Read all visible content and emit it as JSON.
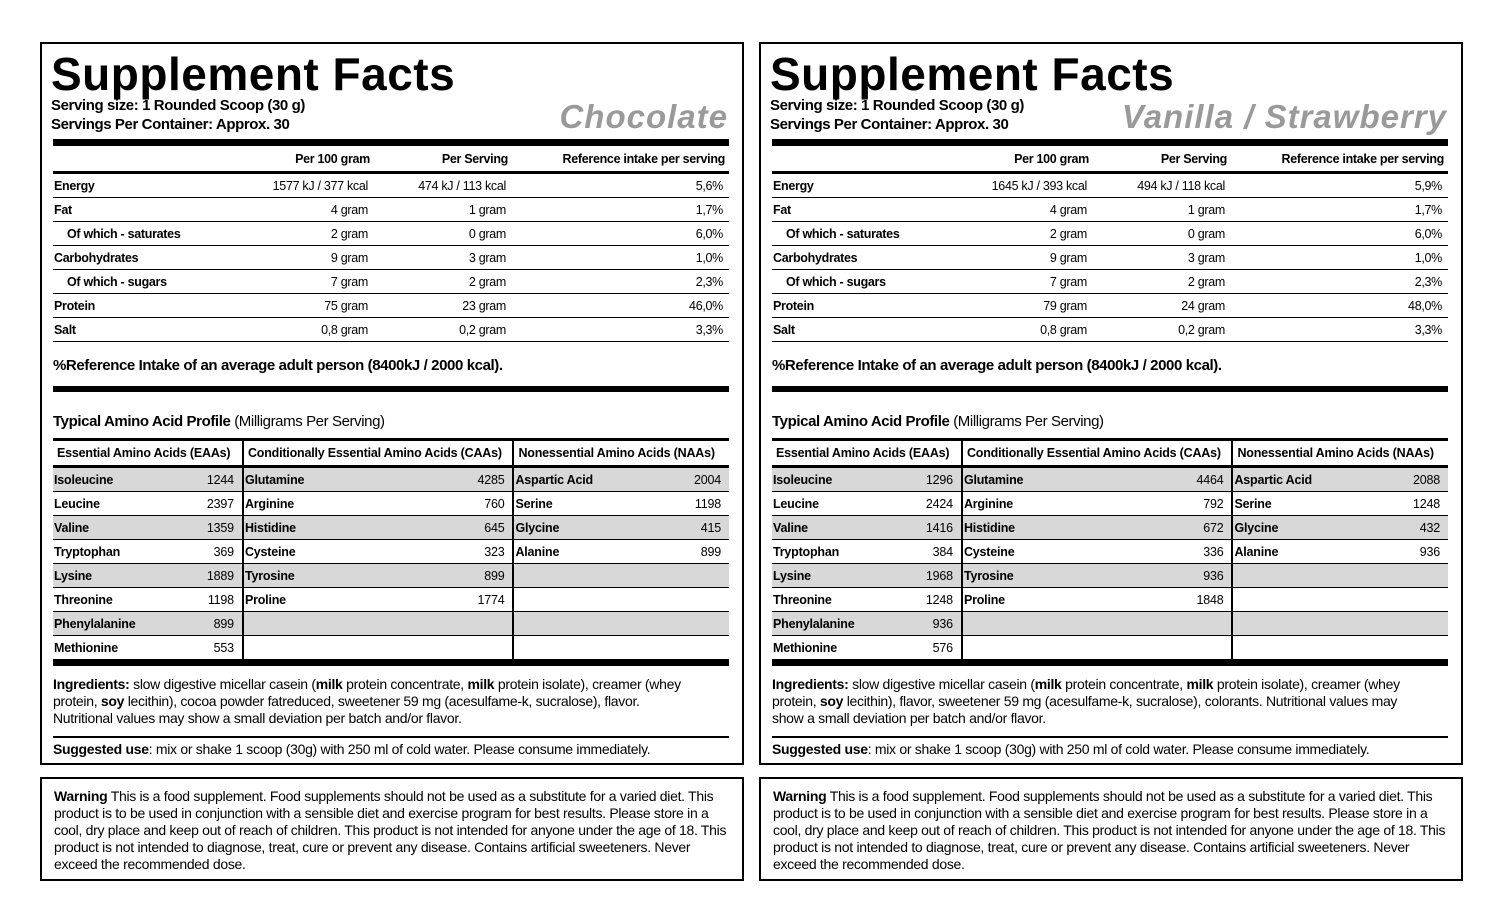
{
  "panels": [
    {
      "title": "Supplement Facts",
      "serving_size": "Serving size: 1 Rounded Scoop (30 g)",
      "servings_per_container": "Servings Per Container: Approx. 30",
      "flavor": "Chocolate",
      "nutrition": {
        "headers": [
          "Per 100 gram",
          "Per Serving",
          "Reference intake per serving"
        ],
        "rows": [
          {
            "label": "Energy",
            "values": [
              "1577 kJ / 377 kcal",
              "474 kJ / 113 kcal",
              "5,6%"
            ]
          },
          {
            "label": "Fat",
            "values": [
              "4 gram",
              "1 gram",
              "1,7%"
            ]
          },
          {
            "label": "Of which - saturates",
            "sub": true,
            "values": [
              "2 gram",
              "0 gram",
              "6,0%"
            ]
          },
          {
            "label": "Carbohydrates",
            "values": [
              "9 gram",
              "3 gram",
              "1,0%"
            ]
          },
          {
            "label": "Of which - sugars",
            "sub": true,
            "values": [
              "7 gram",
              "2 gram",
              "2,3%"
            ]
          },
          {
            "label": "Protein",
            "values": [
              "75 gram",
              "23 gram",
              "46,0%"
            ]
          },
          {
            "label": "Salt",
            "values": [
              "0,8 gram",
              "0,2 gram",
              "3,3%"
            ]
          }
        ]
      },
      "reference_note": "%Reference Intake of an average adult person (8400kJ / 2000 kcal).",
      "amino": {
        "title": "Typical Amino Acid Profile",
        "subtitle": "(Milligrams Per Serving)",
        "columns": [
          {
            "header": "Essential Amino Acids (EAAs)",
            "rows": [
              [
                "Isoleucine",
                1244
              ],
              [
                "Leucine",
                2397
              ],
              [
                "Valine",
                1359
              ],
              [
                "Tryptophan",
                369
              ],
              [
                "Lysine",
                1889
              ],
              [
                "Threonine",
                1198
              ],
              [
                "Phenylalanine",
                899
              ],
              [
                "Methionine",
                553
              ]
            ]
          },
          {
            "header": "Conditionally Essential Amino Acids (CAAs)",
            "rows": [
              [
                "Glutamine",
                4285
              ],
              [
                "Arginine",
                760
              ],
              [
                "Histidine",
                645
              ],
              [
                "Cysteine",
                323
              ],
              [
                "Tyrosine",
                899
              ],
              [
                "Proline",
                1774
              ]
            ]
          },
          {
            "header": "Nonessential Amino Acids (NAAs)",
            "rows": [
              [
                "Aspartic Acid",
                2004
              ],
              [
                "Serine",
                1198
              ],
              [
                "Glycine",
                415
              ],
              [
                "Alanine",
                899
              ]
            ]
          }
        ]
      },
      "ingredients": {
        "label": "Ingredients:",
        "segments": [
          {
            "text": " slow digestive micellar casein ("
          },
          {
            "text": "milk",
            "bold": true
          },
          {
            "text": " protein concentrate, "
          },
          {
            "text": "milk",
            "bold": true
          },
          {
            "text": " protein isolate), creamer (whey protein, "
          },
          {
            "text": "soy",
            "bold": true
          },
          {
            "text": " lecithin), cocoa powder fatreduced, sweetener 59 mg (acesulfame-k, sucralose), flavor. Nutritional values may show a small deviation per batch and/or flavor."
          }
        ]
      },
      "suggested_use": {
        "label": "Suggested use",
        "text": ": mix or shake 1 scoop (30g) with 250 ml of cold water. Please consume immediately."
      },
      "warning": {
        "label": "Warning",
        "text": " This is a food supplement. Food supplements should not be used as a substitute for a varied diet. This product is to be used in conjunction with a sensible diet and exercise program for best results. Please store in a cool, dry place and keep out of reach of children. This product is not intended for anyone under the age of 18. This product is not intended to diagnose, treat, cure or prevent any disease. Contains artificial sweeteners. Never exceed the recommended dose."
      }
    },
    {
      "title": "Supplement Facts",
      "serving_size": "Serving size: 1 Rounded Scoop (30 g)",
      "servings_per_container": "Servings Per Container: Approx. 30",
      "flavor": "Vanilla / Strawberry",
      "nutrition": {
        "headers": [
          "Per 100 gram",
          "Per Serving",
          "Reference intake per serving"
        ],
        "rows": [
          {
            "label": "Energy",
            "values": [
              "1645 kJ / 393 kcal",
              "494 kJ / 118 kcal",
              "5,9%"
            ]
          },
          {
            "label": "Fat",
            "values": [
              "4 gram",
              "1 gram",
              "1,7%"
            ]
          },
          {
            "label": "Of which - saturates",
            "sub": true,
            "values": [
              "2 gram",
              "0 gram",
              "6,0%"
            ]
          },
          {
            "label": "Carbohydrates",
            "values": [
              "9 gram",
              "3 gram",
              "1,0%"
            ]
          },
          {
            "label": "Of which - sugars",
            "sub": true,
            "values": [
              "7 gram",
              "2 gram",
              "2,3%"
            ]
          },
          {
            "label": "Protein",
            "values": [
              "79 gram",
              "24 gram",
              "48,0%"
            ]
          },
          {
            "label": "Salt",
            "values": [
              "0,8 gram",
              "0,2 gram",
              "3,3%"
            ]
          }
        ]
      },
      "reference_note": "%Reference Intake of an average adult person (8400kJ / 2000 kcal).",
      "amino": {
        "title": "Typical Amino Acid Profile",
        "subtitle": "(Milligrams Per Serving)",
        "columns": [
          {
            "header": "Essential Amino Acids (EAAs)",
            "rows": [
              [
                "Isoleucine",
                1296
              ],
              [
                "Leucine",
                2424
              ],
              [
                "Valine",
                1416
              ],
              [
                "Tryptophan",
                384
              ],
              [
                "Lysine",
                1968
              ],
              [
                "Threonine",
                1248
              ],
              [
                "Phenylalanine",
                936
              ],
              [
                "Methionine",
                576
              ]
            ]
          },
          {
            "header": "Conditionally Essential Amino Acids (CAAs)",
            "rows": [
              [
                "Glutamine",
                4464
              ],
              [
                "Arginine",
                792
              ],
              [
                "Histidine",
                672
              ],
              [
                "Cysteine",
                336
              ],
              [
                "Tyrosine",
                936
              ],
              [
                "Proline",
                1848
              ]
            ]
          },
          {
            "header": "Nonessential Amino Acids (NAAs)",
            "rows": [
              [
                "Aspartic Acid",
                2088
              ],
              [
                "Serine",
                1248
              ],
              [
                "Glycine",
                432
              ],
              [
                "Alanine",
                936
              ]
            ]
          }
        ]
      },
      "ingredients": {
        "label": "Ingredients:",
        "segments": [
          {
            "text": " slow digestive micellar casein ("
          },
          {
            "text": "milk",
            "bold": true
          },
          {
            "text": " protein concentrate, "
          },
          {
            "text": "milk",
            "bold": true
          },
          {
            "text": " protein isolate), creamer (whey protein, "
          },
          {
            "text": "soy",
            "bold": true
          },
          {
            "text": " lecithin), flavor, sweetener 59 mg (acesulfame-k, sucralose), colorants. Nutritional values may show a small deviation per batch and/or flavor."
          }
        ]
      },
      "suggested_use": {
        "label": "Suggested use",
        "text": ": mix or shake 1 scoop (30g) with 250 ml of cold water. Please consume immediately."
      },
      "warning": {
        "label": "Warning",
        "text": " This is a food supplement. Food supplements should not be used as a substitute for a varied diet. This product is to be used in conjunction with a sensible diet and exercise program for best results. Please store in a cool, dry place and keep out of reach of children. This product is not intended for anyone under the age of 18. This product is not intended to diagnose, treat, cure or prevent any disease. Contains artificial sweeteners. Never exceed the recommended dose."
      }
    }
  ]
}
